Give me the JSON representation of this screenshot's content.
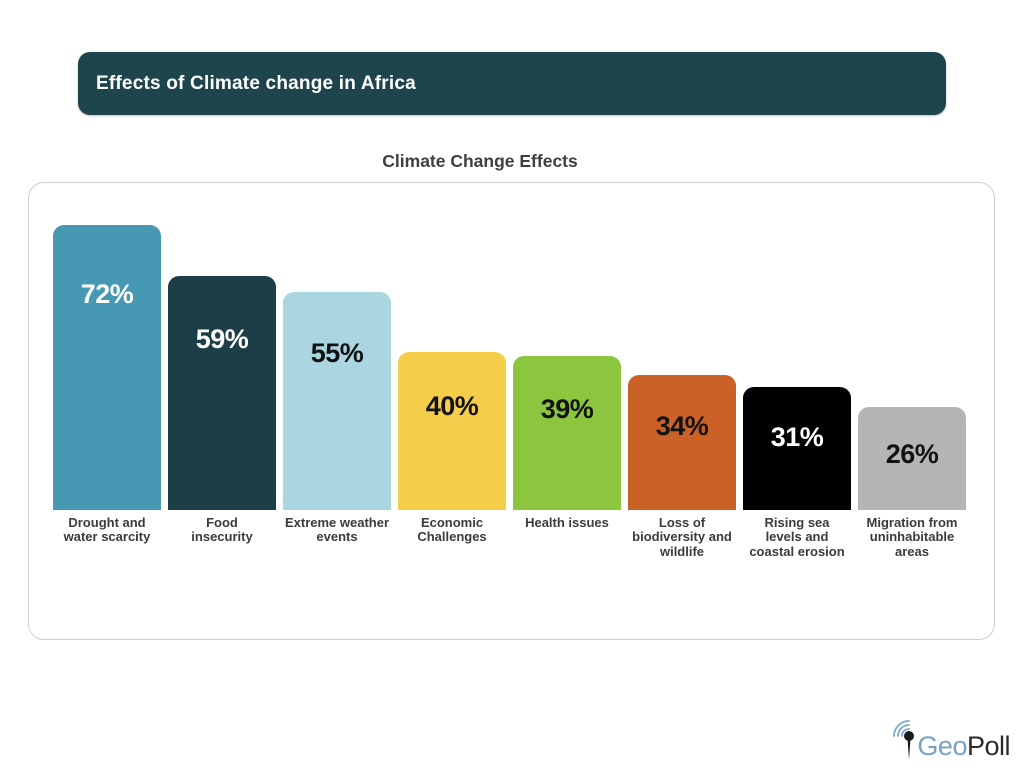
{
  "banner": {
    "title": "Effects of Climate change in Africa",
    "bg_color": "#1e444c",
    "text_color": "#ffffff"
  },
  "chart_data": {
    "type": "bar",
    "title": "Climate Change Effects",
    "orientation": "vertical",
    "grid": false,
    "value_unit": "%",
    "ylim": [
      0,
      72
    ],
    "categories": [
      "Drought and\nwater scarcity",
      "Food\ninsecurity",
      "Extreme weather\nevents",
      "Economic\nChallenges",
      "Health issues",
      "Loss of\nbiodiversity and\nwildlife",
      "Rising sea\nlevels and\ncoastal erosion",
      "Migration from\nuninhabitable\nareas"
    ],
    "values": [
      72,
      59,
      55,
      40,
      39,
      34,
      31,
      26
    ],
    "value_labels": [
      "72%",
      "59%",
      "55%",
      "40%",
      "39%",
      "34%",
      "31%",
      "26%"
    ],
    "bar_colors": [
      "#4798b3",
      "#1e3e47",
      "#a9d6e0",
      "#f4cd4b",
      "#8cc63f",
      "#ca6228",
      "#000000",
      "#b5b5b5"
    ],
    "value_label_colors": [
      "#ffffff",
      "#ffffff",
      "#121212",
      "#121212",
      "#121212",
      "#121212",
      "#ffffff",
      "#121212"
    ]
  },
  "colors": {
    "page_bg": "#ffffff",
    "card_border": "#cfcfcf",
    "chart_title": "#3f3f3f",
    "category_label": "#3b3b3b"
  },
  "logo": {
    "icon": "signal-pin-icon",
    "text_geo": "Geo",
    "text_poll": "Poll",
    "geo_color": "#78a3c6",
    "poll_color": "#2b2b2b"
  }
}
